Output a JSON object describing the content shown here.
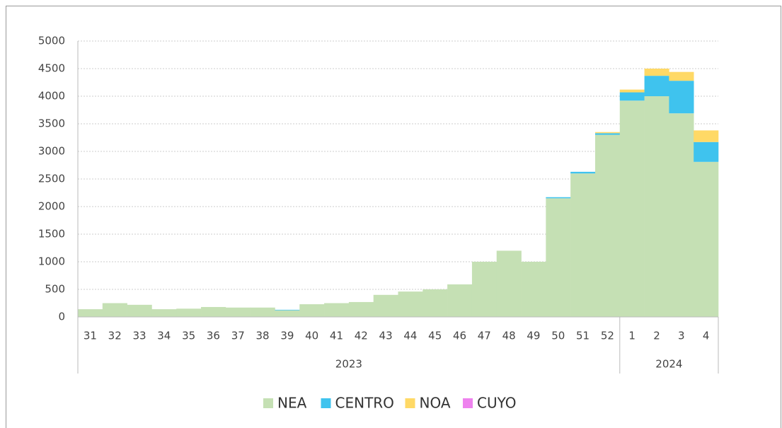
{
  "chart_data": {
    "type": "stacked_bar",
    "category_groups": [
      {
        "name": "2023",
        "categories": [
          "31",
          "32",
          "33",
          "34",
          "35",
          "36",
          "37",
          "38",
          "39",
          "40",
          "41",
          "42",
          "43",
          "44",
          "45",
          "46",
          "47",
          "48",
          "49",
          "50",
          "51",
          "52"
        ]
      },
      {
        "name": "2024",
        "categories": [
          "1",
          "2",
          "3",
          "4"
        ]
      }
    ],
    "series": [
      {
        "name": "NEA",
        "color": "#c5e0b4",
        "values": [
          140,
          250,
          220,
          140,
          150,
          180,
          170,
          170,
          120,
          230,
          250,
          270,
          400,
          460,
          500,
          590,
          1000,
          1200,
          1000,
          2150,
          2600,
          3300,
          3920,
          4000,
          3690,
          2810
        ]
      },
      {
        "name": "CENTRO",
        "color": "#3fc3ee",
        "values": [
          0,
          0,
          0,
          0,
          0,
          0,
          0,
          0,
          10,
          0,
          0,
          0,
          0,
          0,
          0,
          0,
          0,
          0,
          0,
          20,
          30,
          30,
          150,
          370,
          590,
          360
        ]
      },
      {
        "name": "NOA",
        "color": "#ffd966",
        "values": [
          0,
          0,
          0,
          0,
          0,
          0,
          0,
          0,
          0,
          0,
          0,
          0,
          0,
          0,
          0,
          0,
          0,
          0,
          0,
          0,
          0,
          20,
          50,
          130,
          160,
          210
        ]
      },
      {
        "name": "CUYO",
        "color": "#ee82ee",
        "values": [
          0,
          0,
          0,
          0,
          0,
          0,
          0,
          0,
          0,
          0,
          0,
          0,
          0,
          0,
          0,
          0,
          0,
          0,
          0,
          0,
          0,
          0,
          0,
          0,
          0,
          0
        ]
      }
    ],
    "ylim": [
      0,
      5000
    ],
    "yticks": [
      0,
      500,
      1000,
      1500,
      2000,
      2500,
      3000,
      3500,
      4000,
      4500,
      5000
    ],
    "grid": true,
    "legend": "bottom"
  }
}
